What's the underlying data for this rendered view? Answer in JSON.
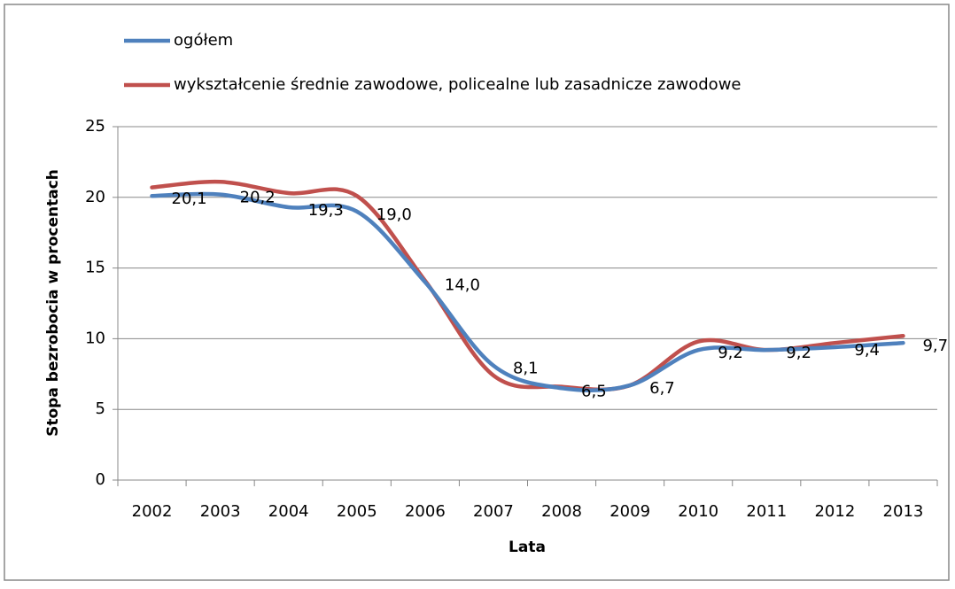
{
  "chart_data": {
    "type": "line",
    "x_label": "Lata",
    "y_label": "Stopa bezrobocia w procentach",
    "categories": [
      "2002",
      "2003",
      "2004",
      "2005",
      "2006",
      "2007",
      "2008",
      "2009",
      "2010",
      "2011",
      "2012",
      "2013"
    ],
    "series": [
      {
        "name": "ogółem",
        "color": "#4f81bd",
        "values": [
          20.1,
          20.2,
          19.3,
          19.0,
          14.0,
          8.1,
          6.5,
          6.7,
          9.2,
          9.2,
          9.4,
          9.7
        ],
        "value_labels": [
          "20,1",
          "20,2",
          "19,3",
          "19,0",
          "14,0",
          "8,1",
          "6,5",
          "6,7",
          "9,2",
          "9,2",
          "9,4",
          "9,7"
        ]
      },
      {
        "name": "wykształcenie średnie zawodowe, policealne lub zasadnicze zawodowe",
        "color": "#c0504d",
        "values": [
          20.7,
          21.1,
          20.3,
          20.1,
          14.1,
          7.4,
          6.6,
          6.7,
          9.8,
          9.2,
          9.7,
          10.2
        ]
      }
    ],
    "ylim": [
      0,
      25
    ],
    "yticks": [
      0,
      5,
      10,
      15,
      20,
      25
    ],
    "grid": true,
    "legend": "top",
    "smooth": true
  }
}
